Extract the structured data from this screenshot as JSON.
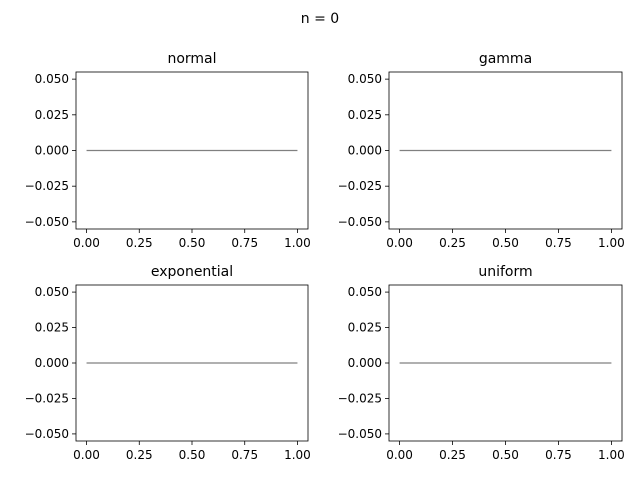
{
  "figure": {
    "suptitle": "n = 0"
  },
  "chart_data": [
    {
      "type": "line",
      "title": "normal",
      "xlabel": "",
      "ylabel": "",
      "xlim": [
        -0.05,
        1.05
      ],
      "ylim": [
        -0.055,
        0.055
      ],
      "xticks": [
        0.0,
        0.25,
        0.5,
        0.75,
        1.0
      ],
      "xtick_labels": [
        "0.00",
        "0.25",
        "0.50",
        "0.75",
        "1.00"
      ],
      "yticks": [
        0.05,
        0.025,
        0.0,
        -0.025,
        -0.05
      ],
      "ytick_labels": [
        "0.050",
        "0.025",
        "0.000",
        "−0.025",
        "−0.050"
      ],
      "series": [
        {
          "x": [
            0,
            1
          ],
          "y": [
            0,
            0
          ],
          "color": "#808080"
        }
      ]
    },
    {
      "type": "line",
      "title": "gamma",
      "xlabel": "",
      "ylabel": "",
      "xlim": [
        -0.05,
        1.05
      ],
      "ylim": [
        -0.055,
        0.055
      ],
      "xticks": [
        0.0,
        0.25,
        0.5,
        0.75,
        1.0
      ],
      "xtick_labels": [
        "0.00",
        "0.25",
        "0.50",
        "0.75",
        "1.00"
      ],
      "yticks": [
        0.05,
        0.025,
        0.0,
        -0.025,
        -0.05
      ],
      "ytick_labels": [
        "0.050",
        "0.025",
        "0.000",
        "−0.025",
        "−0.050"
      ],
      "series": [
        {
          "x": [
            0,
            1
          ],
          "y": [
            0,
            0
          ],
          "color": "#808080"
        }
      ]
    },
    {
      "type": "line",
      "title": "exponential",
      "xlabel": "",
      "ylabel": "",
      "xlim": [
        -0.05,
        1.05
      ],
      "ylim": [
        -0.055,
        0.055
      ],
      "xticks": [
        0.0,
        0.25,
        0.5,
        0.75,
        1.0
      ],
      "xtick_labels": [
        "0.00",
        "0.25",
        "0.50",
        "0.75",
        "1.00"
      ],
      "yticks": [
        0.05,
        0.025,
        0.0,
        -0.025,
        -0.05
      ],
      "ytick_labels": [
        "0.050",
        "0.025",
        "0.000",
        "−0.025",
        "−0.050"
      ],
      "series": [
        {
          "x": [
            0,
            1
          ],
          "y": [
            0,
            0
          ],
          "color": "#808080"
        }
      ]
    },
    {
      "type": "line",
      "title": "uniform",
      "xlabel": "",
      "ylabel": "",
      "xlim": [
        -0.05,
        1.05
      ],
      "ylim": [
        -0.055,
        0.055
      ],
      "xticks": [
        0.0,
        0.25,
        0.5,
        0.75,
        1.0
      ],
      "xtick_labels": [
        "0.00",
        "0.25",
        "0.50",
        "0.75",
        "1.00"
      ],
      "yticks": [
        0.05,
        0.025,
        0.0,
        -0.025,
        -0.05
      ],
      "ytick_labels": [
        "0.050",
        "0.025",
        "0.000",
        "−0.025",
        "−0.050"
      ],
      "series": [
        {
          "x": [
            0,
            1
          ],
          "y": [
            0,
            0
          ],
          "color": "#808080"
        }
      ]
    }
  ]
}
